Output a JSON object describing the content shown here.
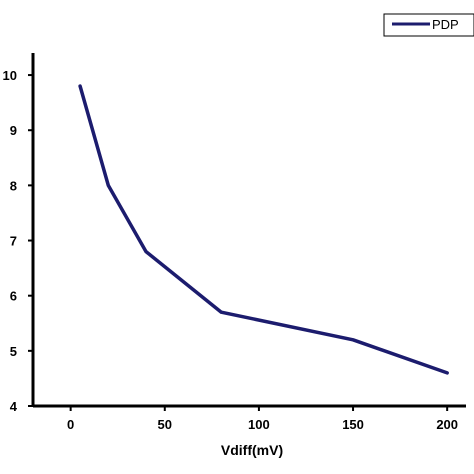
{
  "chart_data": {
    "type": "line",
    "title": "",
    "xlabel": "Vdiff(mV)",
    "ylabel": "",
    "xlim": [
      -20,
      210
    ],
    "ylim": [
      4,
      10.4
    ],
    "x_ticks": [
      0,
      50,
      100,
      150,
      200
    ],
    "x_tick_labels": [
      "0",
      "50",
      "100",
      "150",
      "200"
    ],
    "y_ticks": [
      4,
      5,
      6,
      7,
      8,
      9,
      10
    ],
    "y_tick_labels": [
      "4",
      "5",
      "6",
      "7",
      "8",
      "9",
      "10"
    ],
    "grid": false,
    "legend_position": "top-right",
    "series": [
      {
        "name": "PDP",
        "color": "#1c1c6e",
        "x": [
          5,
          20,
          40,
          80,
          150,
          200
        ],
        "y": [
          9.8,
          8.0,
          6.8,
          5.7,
          5.2,
          4.6
        ]
      }
    ]
  }
}
